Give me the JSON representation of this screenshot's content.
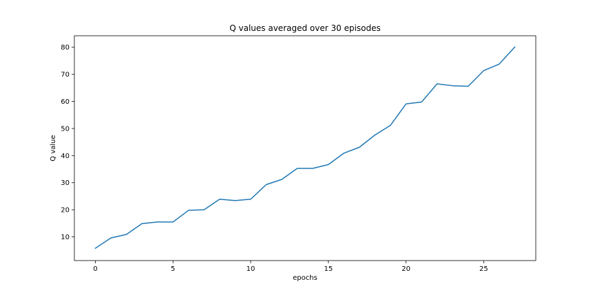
{
  "chart_data": {
    "type": "line",
    "title": "Q values averaged over 30 episodes",
    "xlabel": "epochs",
    "ylabel": "Q value",
    "xlim": [
      -1.35,
      28.35
    ],
    "ylim": [
      1.25,
      84.25
    ],
    "xticks": [
      0,
      5,
      10,
      15,
      20,
      25
    ],
    "yticks": [
      10,
      20,
      30,
      40,
      50,
      60,
      70,
      80
    ],
    "grid": false,
    "series": [
      {
        "color": "#1f77b4",
        "x": [
          0,
          1,
          2,
          3,
          4,
          5,
          6,
          7,
          8,
          9,
          10,
          11,
          12,
          13,
          14,
          15,
          16,
          17,
          18,
          19,
          20,
          21,
          22,
          23,
          24,
          25,
          26,
          27
        ],
        "y": [
          5.8,
          9.6,
          10.9,
          14.9,
          15.5,
          15.5,
          19.8,
          20.0,
          23.9,
          23.4,
          23.9,
          29.3,
          31.2,
          35.3,
          35.3,
          36.7,
          40.9,
          43.1,
          47.6,
          51.2,
          59.1,
          59.8,
          66.5,
          65.8,
          65.6,
          71.4,
          73.8,
          80.1
        ]
      }
    ]
  }
}
